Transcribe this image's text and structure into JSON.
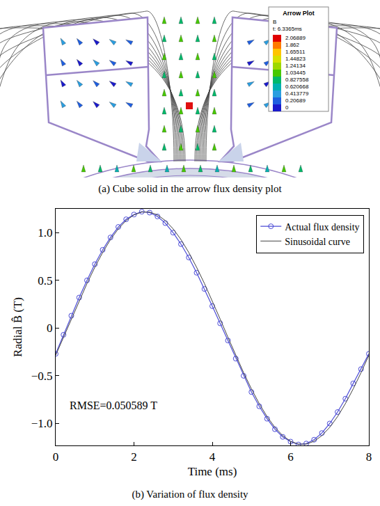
{
  "figure_a": {
    "caption": "(a) Cube solid in the arrow flux density plot",
    "legend": {
      "title": "Arrow Plot",
      "quantity": "B",
      "time": "t: 6.3365ms",
      "levels": [
        2.06889,
        1.862,
        1.65511,
        1.44823,
        1.24134,
        1.03445,
        0.827558,
        0.620668,
        0.413779,
        0.20689,
        0
      ]
    }
  },
  "chart_data": {
    "type": "line",
    "caption": "(b) Variation of flux density",
    "x_label": "Time (ms)",
    "y_label": "Radial B̂ (T)",
    "x": [
      0,
      0.2,
      0.4,
      0.6,
      0.8,
      1.0,
      1.2,
      1.4,
      1.6,
      1.8,
      2.0,
      2.2,
      2.4,
      2.6,
      2.8,
      3.0,
      3.2,
      3.4,
      3.6,
      3.8,
      4.0,
      4.2,
      4.4,
      4.6,
      4.8,
      5.0,
      5.2,
      5.4,
      5.6,
      5.8,
      6.0,
      6.2,
      6.4,
      6.6,
      6.8,
      7.0,
      7.2,
      7.4,
      7.6,
      7.8,
      8.0
    ],
    "series": [
      {
        "name": "Actual flux density",
        "color": "#4b4bd6",
        "marker": "circle",
        "line_style": "solid",
        "values": [
          -0.27,
          -0.07,
          0.13,
          0.32,
          0.5,
          0.67,
          0.82,
          0.95,
          1.06,
          1.14,
          1.19,
          1.22,
          1.21,
          1.17,
          1.1,
          1.0,
          0.88,
          0.74,
          0.58,
          0.41,
          0.23,
          0.05,
          -0.13,
          -0.32,
          -0.5,
          -0.67,
          -0.82,
          -0.95,
          -1.06,
          -1.14,
          -1.19,
          -1.22,
          -1.21,
          -1.17,
          -1.1,
          -1.0,
          -0.88,
          -0.74,
          -0.58,
          -0.43,
          -0.27
        ]
      },
      {
        "name": "Sinusoidal curve",
        "color": "#444444",
        "line_style": "solid",
        "values": [
          -0.285,
          -0.096,
          0.096,
          0.285,
          0.467,
          0.637,
          0.792,
          0.928,
          1.04,
          1.127,
          1.186,
          1.216,
          1.216,
          1.186,
          1.127,
          1.04,
          0.928,
          0.792,
          0.637,
          0.467,
          0.285,
          0.096,
          -0.096,
          -0.285,
          -0.467,
          -0.637,
          -0.792,
          -0.928,
          -1.04,
          -1.127,
          -1.186,
          -1.216,
          -1.216,
          -1.186,
          -1.127,
          -1.04,
          -0.928,
          -0.792,
          -0.637,
          -0.467,
          -0.285
        ]
      }
    ],
    "annotations": [
      "RMSE=0.050589 T"
    ],
    "xlim": [
      0,
      8
    ],
    "xticks": [
      0,
      2,
      4,
      6,
      8
    ],
    "ylim": [
      -1.23,
      1.25
    ],
    "yticks": [
      {
        "value": -1,
        "label": "−1.0"
      },
      {
        "value": -0.5,
        "label": "−0.5"
      },
      0,
      0.5,
      {
        "value": 1,
        "label": "1.0"
      }
    ],
    "legend": "top right",
    "grid": false
  }
}
